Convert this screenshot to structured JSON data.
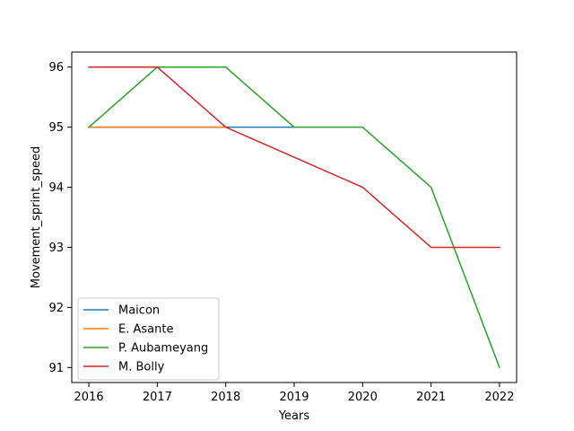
{
  "chart_data": {
    "type": "line",
    "title": "",
    "xlabel": "Years",
    "ylabel": "Movement_sprint_speed",
    "xlim": [
      2015.75,
      2022.25
    ],
    "ylim": [
      90.75,
      96.25
    ],
    "xticks": [
      "2016",
      "2017",
      "2018",
      "2019",
      "2020",
      "2021",
      "2022"
    ],
    "yticks": [
      "91",
      "92",
      "93",
      "94",
      "95",
      "96"
    ],
    "grid": false,
    "legend_position": "lower-left",
    "series": [
      {
        "name": "Maicon",
        "color": "#1f77b4",
        "points": [
          [
            2016,
            95
          ],
          [
            2017,
            95
          ],
          [
            2018,
            95
          ],
          [
            2019,
            95
          ]
        ]
      },
      {
        "name": "E. Asante",
        "color": "#ff7f0e",
        "points": [
          [
            2016,
            95
          ],
          [
            2017,
            95
          ],
          [
            2018,
            95
          ]
        ]
      },
      {
        "name": "P. Aubameyang",
        "color": "#2ca02c",
        "points": [
          [
            2016,
            95
          ],
          [
            2017,
            96
          ],
          [
            2018,
            96
          ],
          [
            2019,
            95
          ],
          [
            2020,
            95
          ],
          [
            2021,
            94
          ],
          [
            2022,
            91
          ]
        ]
      },
      {
        "name": "M. Bolly",
        "color": "#d62728",
        "points": [
          [
            2016,
            96
          ],
          [
            2017,
            96
          ],
          [
            2018,
            95
          ],
          [
            2019,
            94.5
          ],
          [
            2020,
            94
          ],
          [
            2021,
            93
          ],
          [
            2022,
            93
          ]
        ]
      }
    ]
  }
}
